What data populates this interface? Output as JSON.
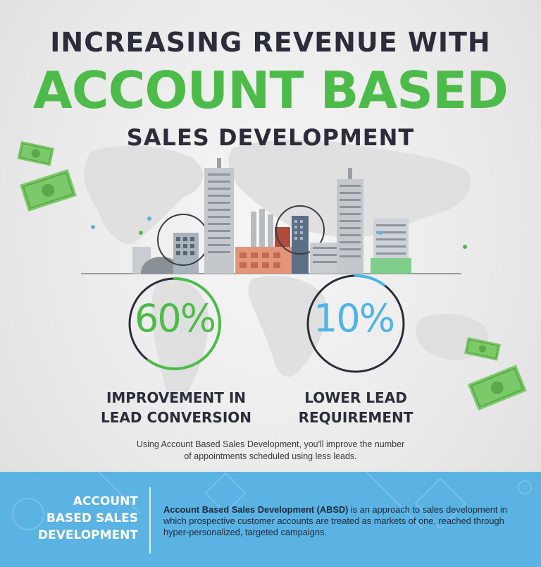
{
  "header": {
    "line1": "INCREASING REVENUE WITH",
    "line2": "ACCOUNT BASED",
    "line3": "SALES DEVELOPMENT"
  },
  "stats": [
    {
      "value": "60%",
      "label_line1": "IMPROVEMENT IN",
      "label_line2": "LEAD CONVERSION",
      "color": "#4dbb49",
      "ring_fraction": 0.6
    },
    {
      "value": "10%",
      "label_line1": "LOWER LEAD",
      "label_line2": "REQUIREMENT",
      "color": "#4fb4e6",
      "ring_fraction": 0.1
    }
  ],
  "caption": {
    "line1": "Using Account Based Sales Development, you'll improve the number",
    "line2": "of appointments scheduled using less leads."
  },
  "footer": {
    "heading_line1": "ACCOUNT",
    "heading_line2": "BASED SALES",
    "heading_line3": "DEVELOPMENT",
    "definition_bold": "Account Based Sales Development (ABSD)",
    "definition_rest": " is an approach to sales development in which prospective customer accounts are treated as markets of one, reached through hyper-personalized, targeted campaigns."
  },
  "colors": {
    "green": "#4dbb49",
    "blue": "#4fb4e6",
    "dark": "#2b2d3a",
    "footer_bg": "#5ab3e3"
  },
  "icons": [
    "money-bill-icon",
    "city-skyline-illustration",
    "world-map-background"
  ]
}
